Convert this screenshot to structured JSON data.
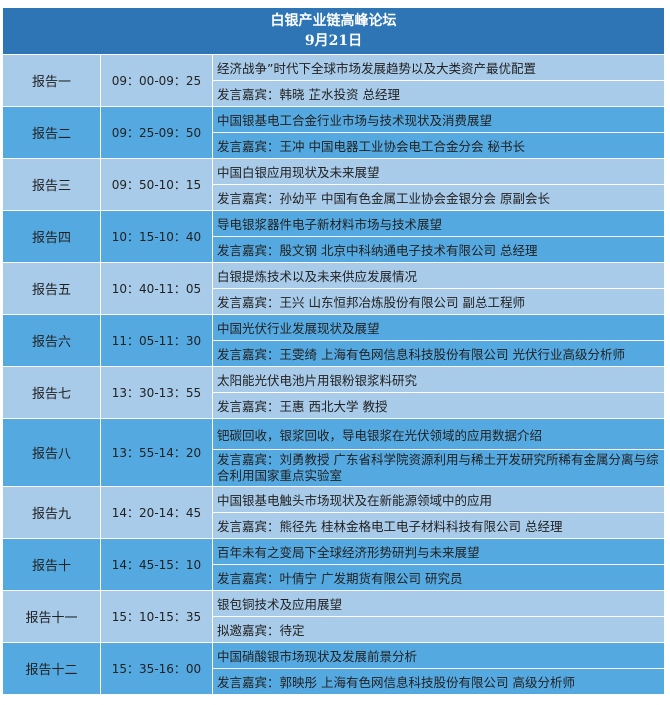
{
  "header": {
    "title": "白银产业链高峰论坛",
    "date": "9月21日"
  },
  "rows": [
    {
      "label": "报告一",
      "time": "09：00-09：25",
      "topic": "经济战争”时代下全球市场发展趋势以及大类资产最优配置",
      "speaker": "发言嘉宾：韩晓  芷水投资  总经理"
    },
    {
      "label": "报告二",
      "time": "09：25-09：50",
      "topic": "中国银基电工合金行业市场与技术现状及消费展望",
      "speaker": "发言嘉宾：王冲  中国电器工业协会电工合金分会  秘书长"
    },
    {
      "label": "报告三",
      "time": "09：50-10：15",
      "topic": "中国白银应用现状及未来展望",
      "speaker": "发言嘉宾：孙幼平  中国有色金属工业协会金银分会    原副会长"
    },
    {
      "label": "报告四",
      "time": "10：15-10：40",
      "topic": "导电银浆器件电子新材料市场与技术展望",
      "speaker": "发言嘉宾：殷文钢  北京中科纳通电子技术有限公司  总经理"
    },
    {
      "label": "报告五",
      "time": "10：40-11：05",
      "topic": "白银提炼技术以及未来供应发展情况",
      "speaker": "发言嘉宾：王兴  山东恒邦冶炼股份有限公司  副总工程师"
    },
    {
      "label": "报告六",
      "time": "11：05-11：30",
      "topic": "中国光伏行业发展现状及展望",
      "speaker": "发言嘉宾：王雯绮  上海有色网信息科技股份有限公司  光伏行业高级分析师"
    },
    {
      "label": "报告七",
      "time": "13：30-13：55",
      "topic": "太阳能光伏电池片用银粉银浆料研究",
      "speaker": "发言嘉宾：王惠  西北大学  教授"
    },
    {
      "label": "报告八",
      "time": "13：55-14：20",
      "topic": "钯碳回收，银浆回收，导电银浆在光伏领域的应用数据介绍",
      "speaker": "发言嘉宾：刘勇教授  广东省科学院资源利用与稀土开发研究所稀有金属分离与综合利用国家重点实验室"
    },
    {
      "label": "报告九",
      "time": "14：20-14：45",
      "topic": "中国银基电触头市场现状及在新能源领域中的应用",
      "speaker": "发言嘉宾：熊径先    桂林金格电工电子材料科技有限公司    总经理"
    },
    {
      "label": "报告十",
      "time": "14：45-15：10",
      "topic": "百年未有之变局下全球经济形势研判与未来展望",
      "speaker": "发言嘉宾：叶倩宁  广发期货有限公司  研究员"
    },
    {
      "label": "报告十一",
      "time": "15：10-15：35",
      "topic": "银包铜技术及应用展望",
      "speaker": "拟邀嘉宾：待定"
    },
    {
      "label": "报告十二",
      "time": "15：35-16：00",
      "topic": "中国硝酸银市场现状及发展前景分析",
      "speaker": "发言嘉宾：郭映彤  上海有色网信息科技股份有限公司  高级分析师"
    }
  ],
  "colors": {
    "header": "#2e75b6",
    "row_light": "#a8cbe9",
    "row_dark": "#55a9e1"
  }
}
